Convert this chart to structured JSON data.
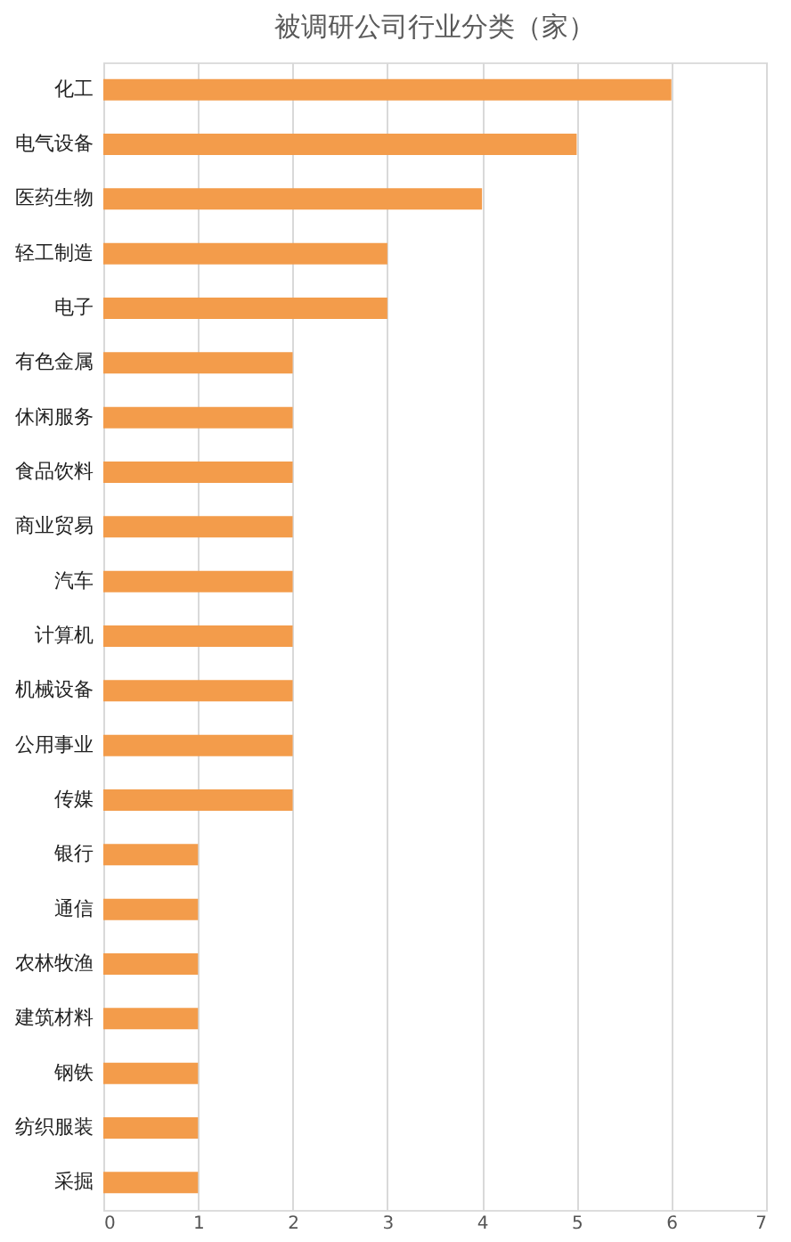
{
  "chart_data": {
    "type": "bar",
    "orientation": "horizontal",
    "title": "被调研公司行业分类（家）",
    "categories": [
      "化工",
      "电气设备",
      "医药生物",
      "轻工制造",
      "电子",
      "有色金属",
      "休闲服务",
      "食品饮料",
      "商业贸易",
      "汽车",
      "计算机",
      "机械设备",
      "公用事业",
      "传媒",
      "银行",
      "通信",
      "农林牧渔",
      "建筑材料",
      "钢铁",
      "纺织服装",
      "采掘"
    ],
    "values": [
      6,
      5,
      4,
      3,
      3,
      2,
      2,
      2,
      2,
      2,
      2,
      2,
      2,
      2,
      1,
      1,
      1,
      1,
      1,
      1,
      1
    ],
    "color": "#f39c4b",
    "xlim": [
      0,
      7
    ],
    "xticks": [
      0,
      1,
      2,
      3,
      4,
      5,
      6,
      7
    ],
    "grid": "x"
  }
}
